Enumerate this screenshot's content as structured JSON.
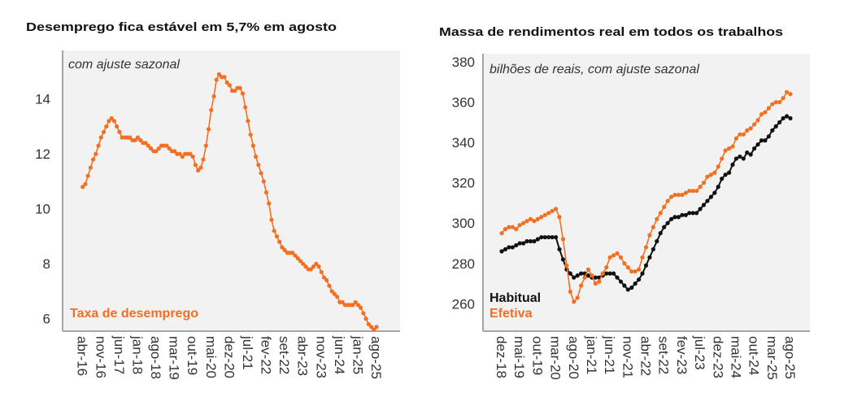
{
  "colors": {
    "orange": "#f36f21",
    "black": "#111111",
    "plot_bg": "#f2f2f2",
    "axis": "#a6a6a6"
  },
  "chart_data": [
    {
      "type": "line",
      "title": "Desemprego fica estável em 5,7% em agosto",
      "subtitle": "com ajuste sazonal",
      "ylim": [
        5.5,
        15.2
      ],
      "yticks": [
        6,
        8,
        10,
        12,
        14
      ],
      "x_start": "abr-16",
      "x_end": "ago-25",
      "xticks": [
        "abr-16",
        "nov-16",
        "jun-17",
        "jan-18",
        "ago-18",
        "mar-19",
        "out-19",
        "mai-20",
        "dez-20",
        "jul-21",
        "fev-22",
        "set-22",
        "abr-23",
        "nov-23",
        "jun-24",
        "jan-25",
        "ago-25"
      ],
      "legend_placement": "bottom-left",
      "grid": false,
      "series": [
        {
          "name": "Taxa de desemprego",
          "color": "#f36f21",
          "values": [
            10.8,
            10.9,
            11.2,
            11.5,
            11.8,
            12.0,
            12.3,
            12.6,
            12.8,
            13.0,
            13.2,
            13.3,
            13.2,
            13.0,
            12.8,
            12.6,
            12.6,
            12.6,
            12.6,
            12.5,
            12.5,
            12.6,
            12.5,
            12.4,
            12.4,
            12.3,
            12.2,
            12.1,
            12.1,
            12.2,
            12.3,
            12.3,
            12.3,
            12.2,
            12.1,
            12.1,
            12.0,
            12.0,
            11.9,
            12.0,
            12.0,
            12.0,
            11.9,
            11.6,
            11.4,
            11.5,
            11.8,
            12.3,
            12.9,
            13.6,
            14.1,
            14.7,
            14.9,
            14.8,
            14.8,
            14.6,
            14.5,
            14.3,
            14.3,
            14.4,
            14.4,
            14.2,
            13.7,
            13.2,
            12.7,
            12.3,
            11.9,
            11.6,
            11.3,
            11.0,
            10.6,
            10.2,
            9.6,
            9.2,
            9.0,
            8.8,
            8.6,
            8.5,
            8.4,
            8.4,
            8.4,
            8.3,
            8.2,
            8.1,
            8.0,
            7.9,
            7.8,
            7.8,
            7.9,
            8.0,
            7.9,
            7.7,
            7.5,
            7.4,
            7.2,
            7.0,
            6.9,
            6.8,
            6.6,
            6.6,
            6.5,
            6.5,
            6.5,
            6.5,
            6.6,
            6.5,
            6.4,
            6.2,
            6.0,
            5.8,
            5.7,
            5.6,
            5.7
          ]
        }
      ]
    },
    {
      "type": "line",
      "title": "Massa de rendimentos real em todos os trabalhos",
      "subtitle": "bilhões de reais, com ajuste sazonal",
      "ylim": [
        246,
        382
      ],
      "yticks": [
        260,
        280,
        300,
        320,
        340,
        360,
        380
      ],
      "x_start": "dez-18",
      "x_end": "ago-25",
      "xticks": [
        "dez-18",
        "mai-19",
        "out-19",
        "mar-20",
        "ago-20",
        "jan-21",
        "jun-21",
        "nov-21",
        "abr-22",
        "set-22",
        "fev-23",
        "jul-23",
        "dez-23",
        "mai-24",
        "out-24",
        "mar-25",
        "ago-25"
      ],
      "legend_placement": "bottom-left",
      "grid": false,
      "series": [
        {
          "name": "Habitual",
          "color": "#111111",
          "values": [
            286,
            287,
            288,
            288,
            289,
            290,
            290,
            291,
            291,
            291,
            292,
            293,
            293,
            293,
            293,
            293,
            287,
            282,
            277,
            275,
            273,
            274,
            275,
            275,
            274,
            273,
            273,
            273,
            274,
            275,
            275,
            275,
            273,
            271,
            269,
            267,
            268,
            270,
            272,
            275,
            279,
            283,
            287,
            291,
            295,
            298,
            300,
            302,
            303,
            303,
            304,
            304,
            305,
            305,
            305,
            307,
            309,
            311,
            313,
            315,
            318,
            322,
            324,
            325,
            329,
            332,
            333,
            332,
            335,
            334,
            337,
            339,
            341,
            341,
            343,
            346,
            348,
            350,
            352,
            353,
            352
          ]
        },
        {
          "name": "Efetiva",
          "color": "#f36f21",
          "values": [
            295,
            297,
            298,
            298,
            297,
            299,
            300,
            301,
            302,
            301,
            302,
            303,
            304,
            305,
            306,
            307,
            303,
            292,
            279,
            266,
            261,
            263,
            269,
            273,
            277,
            274,
            270,
            271,
            275,
            278,
            283,
            284,
            285,
            283,
            280,
            278,
            276,
            276,
            277,
            283,
            288,
            294,
            298,
            302,
            305,
            308,
            311,
            313,
            314,
            314,
            314,
            315,
            316,
            316,
            316,
            318,
            320,
            323,
            324,
            325,
            328,
            332,
            336,
            337,
            338,
            342,
            344,
            344,
            346,
            347,
            349,
            351,
            354,
            355,
            357,
            359,
            360,
            360,
            362,
            365,
            364
          ]
        }
      ]
    }
  ]
}
